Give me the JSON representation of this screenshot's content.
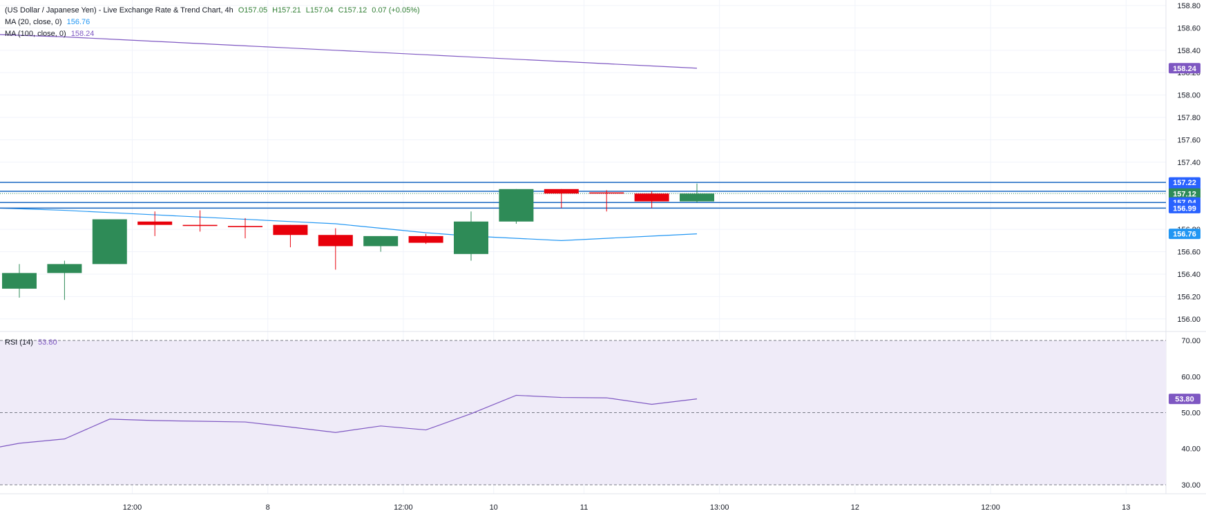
{
  "legend": {
    "title": "(US Dollar / Japanese Yen) - Live Exchange Rate & Trend Chart, 4h",
    "open": "O157.05",
    "high": "H157.21",
    "low": "L157.04",
    "close": "C157.12",
    "change": "0.07 (+0.05%)",
    "ma20_label": "MA (20, close, 0)",
    "ma20_value": "156.76",
    "ma100_label": "MA (100, close, 0)",
    "ma100_value": "158.24",
    "rsi_label": "RSI (14)",
    "rsi_value": "53.80"
  },
  "colors": {
    "up": "#2e8b57",
    "down": "#e8000b",
    "ma20": "#2196f3",
    "ma100": "#7e57c2",
    "hline": "#1565c0",
    "rsi": "#7e57c2",
    "rsi_band": "#efebf8",
    "grid": "#f0f3fa",
    "axis_text": "#131722"
  },
  "chart_data": [
    {
      "type": "candlestick",
      "title": "(US Dollar / Japanese Yen) - Live Exchange Rate & Trend Chart, 4h",
      "ylim": [
        155.9,
        158.8
      ],
      "y_ticks": [
        "156.00",
        "156.20",
        "156.40",
        "156.60",
        "156.80",
        "157.00",
        "157.40",
        "157.60",
        "157.80",
        "158.00",
        "158.20",
        "158.40",
        "158.60",
        "158.80"
      ],
      "candles": [
        {
          "o": 156.27,
          "h": 156.49,
          "l": 156.19,
          "c": 156.41
        },
        {
          "o": 156.41,
          "h": 156.52,
          "l": 156.17,
          "c": 156.49
        },
        {
          "o": 156.49,
          "h": 156.89,
          "l": 156.49,
          "c": 156.89
        },
        {
          "o": 156.87,
          "h": 156.96,
          "l": 156.74,
          "c": 156.84
        },
        {
          "o": 156.84,
          "h": 156.97,
          "l": 156.78,
          "c": 156.83
        },
        {
          "o": 156.83,
          "h": 156.9,
          "l": 156.72,
          "c": 156.82
        },
        {
          "o": 156.84,
          "h": 156.84,
          "l": 156.64,
          "c": 156.75
        },
        {
          "o": 156.75,
          "h": 156.81,
          "l": 156.44,
          "c": 156.65
        },
        {
          "o": 156.65,
          "h": 156.74,
          "l": 156.6,
          "c": 156.74
        },
        {
          "o": 156.74,
          "h": 156.76,
          "l": 156.67,
          "c": 156.68
        },
        {
          "o": 156.58,
          "h": 156.96,
          "l": 156.52,
          "c": 156.87
        },
        {
          "o": 156.87,
          "h": 157.16,
          "l": 156.85,
          "c": 157.16
        },
        {
          "o": 157.16,
          "h": 157.16,
          "l": 156.99,
          "c": 157.12
        },
        {
          "o": 157.13,
          "h": 157.15,
          "l": 156.96,
          "c": 157.12
        },
        {
          "o": 157.12,
          "h": 157.14,
          "l": 156.99,
          "c": 157.05
        },
        {
          "o": 157.05,
          "h": 157.21,
          "l": 157.04,
          "c": 157.12
        }
      ],
      "ma20": [
        156.99,
        156.97,
        156.95,
        156.93,
        156.91,
        156.89,
        156.87,
        156.85,
        156.81,
        156.77,
        156.74,
        156.72,
        156.7,
        156.72,
        156.74,
        156.76
      ],
      "ma100": [
        158.54,
        158.52,
        158.5,
        158.48,
        158.46,
        158.44,
        158.42,
        158.4,
        158.38,
        158.36,
        158.34,
        158.32,
        158.3,
        158.28,
        158.26,
        158.24
      ],
      "horizontal_lines": [
        157.22,
        157.14,
        157.04,
        156.99
      ],
      "last_close": 157.12,
      "price_labels": [
        {
          "value": 158.24,
          "text": "158.24",
          "color": "#7e57c2"
        },
        {
          "value": 157.22,
          "text": "157.22",
          "color": "#2962ff"
        },
        {
          "value": 157.14,
          "text": "157.14",
          "color": "#2962ff"
        },
        {
          "value": 157.12,
          "text": "157.12",
          "color": "#2e8b57"
        },
        {
          "value": 157.04,
          "text": "157.04",
          "color": "#2962ff"
        },
        {
          "value": 156.99,
          "text": "156.99",
          "color": "#2962ff"
        },
        {
          "value": 156.76,
          "text": "156.76",
          "color": "#2196f3"
        }
      ],
      "x_ticks": [
        "12:00",
        "8",
        "12:00",
        "10",
        "11",
        "13:00",
        "12",
        "12:00",
        "13"
      ],
      "x_tick_candle_index": [
        2.5,
        5.5,
        8.5,
        10.5,
        12.5,
        15.5,
        18.5,
        21.5,
        24.5
      ]
    },
    {
      "type": "line",
      "title": "RSI (14)",
      "ylim": [
        27.5,
        72.5
      ],
      "y_ticks": [
        "30.00",
        "40.00",
        "50.00",
        "60.00",
        "70.00"
      ],
      "band": [
        30,
        70
      ],
      "dashed_levels": [
        70,
        50,
        30
      ],
      "values": [
        40.5,
        41.5,
        42.7,
        48.2,
        47.8,
        47.6,
        47.4,
        46.0,
        44.5,
        46.3,
        45.2,
        49.7,
        54.8,
        54.2,
        54.1,
        52.3,
        53.8
      ],
      "value_x_candle_index": [
        -0.4,
        0.0,
        1.0,
        2.0,
        3.0,
        4.0,
        5.0,
        6.0,
        7.0,
        8.0,
        9.0,
        10.0,
        11.0,
        12.0,
        13.0,
        14.0,
        15.0
      ],
      "last_value": "53.80"
    }
  ]
}
